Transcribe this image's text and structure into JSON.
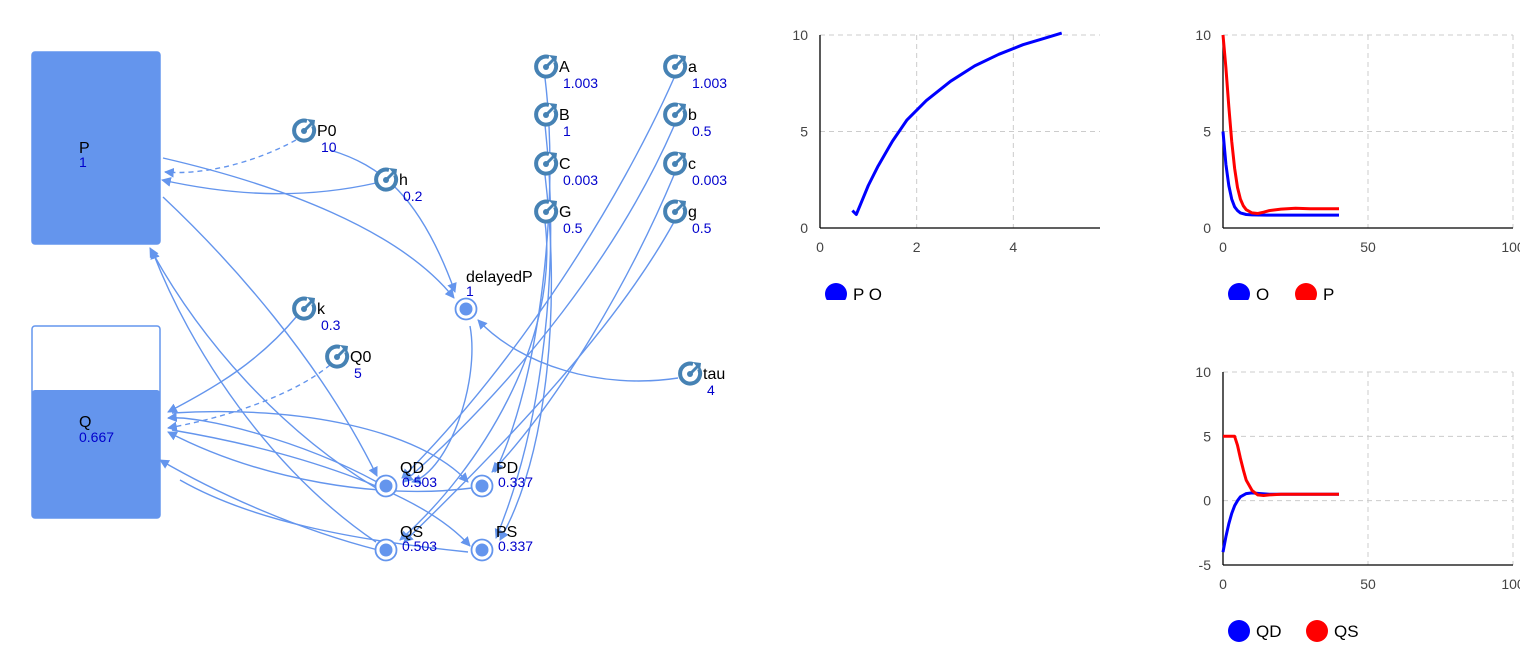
{
  "stocks": [
    {
      "id": "P",
      "name": "P",
      "value": "1",
      "fill_fraction": 1.0
    },
    {
      "id": "Q",
      "name": "Q",
      "value": "0.667",
      "fill_fraction": 0.667
    }
  ],
  "parameters": [
    {
      "id": "P0",
      "name": "P0",
      "value": "10"
    },
    {
      "id": "h",
      "name": "h",
      "value": "0.2"
    },
    {
      "id": "k",
      "name": "k",
      "value": "0.3"
    },
    {
      "id": "Q0",
      "name": "Q0",
      "value": "5"
    },
    {
      "id": "A",
      "name": "A",
      "value": "1.003"
    },
    {
      "id": "B",
      "name": "B",
      "value": "1"
    },
    {
      "id": "C",
      "name": "C",
      "value": "0.003"
    },
    {
      "id": "G",
      "name": "G",
      "value": "0.5"
    },
    {
      "id": "a",
      "name": "a",
      "value": "1.003"
    },
    {
      "id": "b",
      "name": "b",
      "value": "0.5"
    },
    {
      "id": "c",
      "name": "c",
      "value": "0.003"
    },
    {
      "id": "g",
      "name": "g",
      "value": "0.5"
    },
    {
      "id": "tau",
      "name": "tau",
      "value": "4"
    }
  ],
  "variables": [
    {
      "id": "delayedP",
      "name": "delayedP",
      "value": "1"
    },
    {
      "id": "QD",
      "name": "QD",
      "value": "0.503"
    },
    {
      "id": "PD",
      "name": "PD",
      "value": "0.337"
    },
    {
      "id": "QS",
      "name": "QS",
      "value": "0.503"
    },
    {
      "id": "PS",
      "name": "PS",
      "value": "0.337"
    }
  ],
  "colors": {
    "accent": "#6495ed",
    "param_icon": "#4682b4",
    "value_text": "#0000cc",
    "series_blue": "#0000ff",
    "series_red": "#ff0000",
    "grid": "#cccccc"
  },
  "chart_data": [
    {
      "type": "line",
      "xlim": [
        0,
        6
      ],
      "ylim": [
        0,
        10
      ],
      "x_ticks": [
        "0",
        "2",
        "4",
        "6"
      ],
      "y_ticks": [
        "0",
        "5",
        "10"
      ],
      "grid": true,
      "legend_placement": "bottom-left",
      "series": [
        {
          "name": "P Q",
          "color": "#0000ff",
          "x": [
            0.67,
            0.75,
            0.85,
            1.0,
            1.2,
            1.5,
            1.8,
            2.2,
            2.7,
            3.2,
            3.7,
            4.2,
            4.6,
            5.0
          ],
          "y": [
            0.9,
            0.7,
            1.3,
            2.2,
            3.2,
            4.5,
            5.6,
            6.6,
            7.6,
            8.4,
            9.0,
            9.5,
            9.8,
            10.1
          ]
        }
      ]
    },
    {
      "type": "line",
      "xlim": [
        0,
        100
      ],
      "ylim": [
        0,
        10
      ],
      "x_ticks": [
        "0",
        "50",
        "100"
      ],
      "y_ticks": [
        "0",
        "5",
        "10"
      ],
      "grid": true,
      "legend_placement": "bottom-left",
      "series": [
        {
          "name": "Q",
          "color": "#0000ff",
          "x": [
            0,
            1,
            2,
            3,
            4,
            5,
            6,
            8,
            10,
            15,
            20,
            30,
            40
          ],
          "y": [
            5,
            3.3,
            2.2,
            1.5,
            1.1,
            0.9,
            0.78,
            0.7,
            0.68,
            0.667,
            0.667,
            0.667,
            0.667
          ]
        },
        {
          "name": "P",
          "color": "#ff0000",
          "x": [
            0,
            1,
            2,
            3,
            4,
            5,
            6,
            7,
            8,
            10,
            12,
            14,
            16,
            20,
            25,
            30,
            35,
            40
          ],
          "y": [
            10,
            8.3,
            6.3,
            4.5,
            3.1,
            2.1,
            1.5,
            1.15,
            0.95,
            0.78,
            0.75,
            0.82,
            0.9,
            0.98,
            1.02,
            1.0,
            1.0,
            1.0
          ]
        }
      ]
    },
    {
      "type": "line",
      "xlim": [
        0,
        100
      ],
      "ylim": [
        -5,
        10
      ],
      "x_ticks": [
        "0",
        "50",
        "100"
      ],
      "y_ticks": [
        "-5",
        "0",
        "5",
        "10"
      ],
      "grid": true,
      "legend_placement": "bottom-left",
      "series": [
        {
          "name": "QD",
          "color": "#0000ff",
          "x": [
            0,
            1,
            2,
            3,
            4,
            5,
            6,
            8,
            10,
            13,
            16,
            20,
            30,
            40
          ],
          "y": [
            -4,
            -2.8,
            -1.8,
            -1.0,
            -0.4,
            0,
            0.3,
            0.55,
            0.6,
            0.55,
            0.5,
            0.5,
            0.5,
            0.5
          ]
        },
        {
          "name": "QS",
          "color": "#ff0000",
          "x": [
            0,
            2,
            4,
            5,
            6,
            7,
            8,
            10,
            12,
            14,
            16,
            20,
            30,
            40
          ],
          "y": [
            5,
            5,
            5,
            4.3,
            3.3,
            2.4,
            1.6,
            0.8,
            0.45,
            0.4,
            0.45,
            0.5,
            0.5,
            0.5
          ]
        }
      ]
    }
  ]
}
